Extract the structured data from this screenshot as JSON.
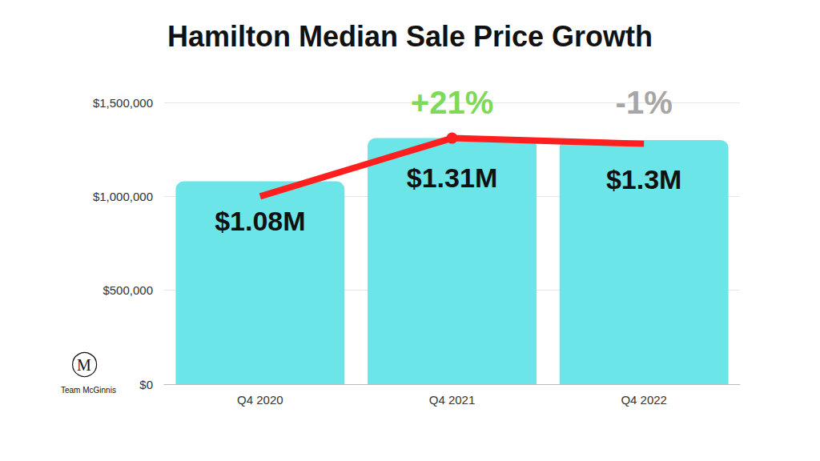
{
  "chart_data": {
    "type": "bar",
    "title": "Hamilton Median Sale Price Growth",
    "categories": [
      "Q4 2020",
      "Q4 2021",
      "Q4 2022"
    ],
    "series": [
      {
        "type": "bar",
        "color": "#6ce5e8",
        "values": [
          1080000,
          1310000,
          1300000
        ],
        "value_labels": [
          "$1.08M",
          "$1.31M",
          "$1.3M"
        ],
        "data_labels": true
      },
      {
        "type": "line",
        "color": "#ff1f1f",
        "marker": "circle",
        "line_style": "solid",
        "values": [
          1000000,
          1310000,
          1280000
        ]
      }
    ],
    "ylim": [
      0,
      1500000
    ],
    "yticks": [
      {
        "value": 0,
        "label": "$0"
      },
      {
        "value": 500000,
        "label": "$500,000"
      },
      {
        "value": 1000000,
        "label": "$1,000,000"
      },
      {
        "value": 1500000,
        "label": "$1,500,000"
      }
    ],
    "grid": true,
    "annotations": [
      {
        "text": "+21%",
        "category": "Q4 2021",
        "color": "#7ed957"
      },
      {
        "text": "-1%",
        "category": "Q4 2022",
        "color": "#a6a6a6"
      }
    ],
    "logo": {
      "mark": "M",
      "text": "Team McGinnis"
    }
  }
}
